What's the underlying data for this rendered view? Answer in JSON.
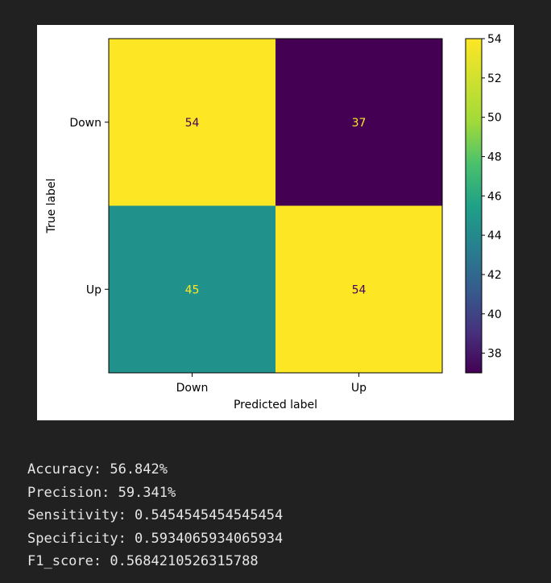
{
  "chart_data": {
    "type": "heatmap",
    "title": "",
    "xlabel": "Predicted label",
    "ylabel": "True label",
    "x_categories": [
      "Down",
      "Up"
    ],
    "y_categories": [
      "Down",
      "Up"
    ],
    "matrix": [
      [
        54,
        37
      ],
      [
        45,
        54
      ]
    ],
    "colormap": "viridis",
    "colorbar": {
      "ticks": [
        "38",
        "40",
        "42",
        "44",
        "46",
        "48",
        "50",
        "52",
        "54"
      ],
      "min": 37,
      "max": 54
    },
    "cell_colors": [
      [
        "#fde725",
        "#440154"
      ],
      [
        "#21918c",
        "#fde725"
      ]
    ],
    "cell_text_colors": [
      [
        "#440154",
        "#fde725"
      ],
      [
        "#fde725",
        "#440154"
      ]
    ]
  },
  "output_lines": [
    "Accuracy: 56.842%",
    "Precision: 59.341%",
    "Sensitivity: 0.5454545454545454",
    "Specificity: 0.5934065934065934",
    "F1_score: 0.5684210526315788"
  ]
}
